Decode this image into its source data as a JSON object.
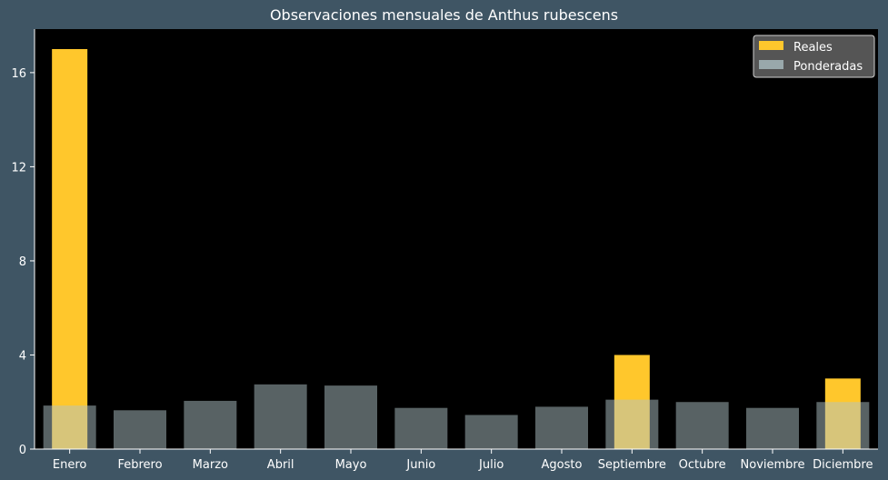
{
  "chart_data": {
    "type": "bar",
    "title": "Observaciones mensuales de Anthus rubescens",
    "xlabel": "",
    "ylabel": "",
    "categories": [
      "Enero",
      "Febrero",
      "Marzo",
      "Abril",
      "Mayo",
      "Junio",
      "Julio",
      "Agosto",
      "Septiembre",
      "Octubre",
      "Noviembre",
      "Diciembre"
    ],
    "series": [
      {
        "name": "Reales",
        "color": "#ffc72c",
        "opacity": 1.0,
        "values": [
          17,
          0,
          0,
          0,
          0,
          0,
          0,
          0,
          4,
          0,
          0,
          3
        ]
      },
      {
        "name": "Ponderadas",
        "color": "#b0c4c8",
        "opacity": 0.5,
        "values": [
          1.85,
          1.65,
          2.05,
          2.75,
          2.7,
          1.75,
          1.45,
          1.8,
          2.1,
          2.0,
          1.75,
          2.0
        ]
      }
    ],
    "ylim": [
      0,
      17.85
    ],
    "yticks": [
      0,
      4,
      8,
      12,
      16
    ],
    "grid": false,
    "legend_position": "top-right",
    "background": "#000000",
    "figure_background": "#3f5564"
  }
}
